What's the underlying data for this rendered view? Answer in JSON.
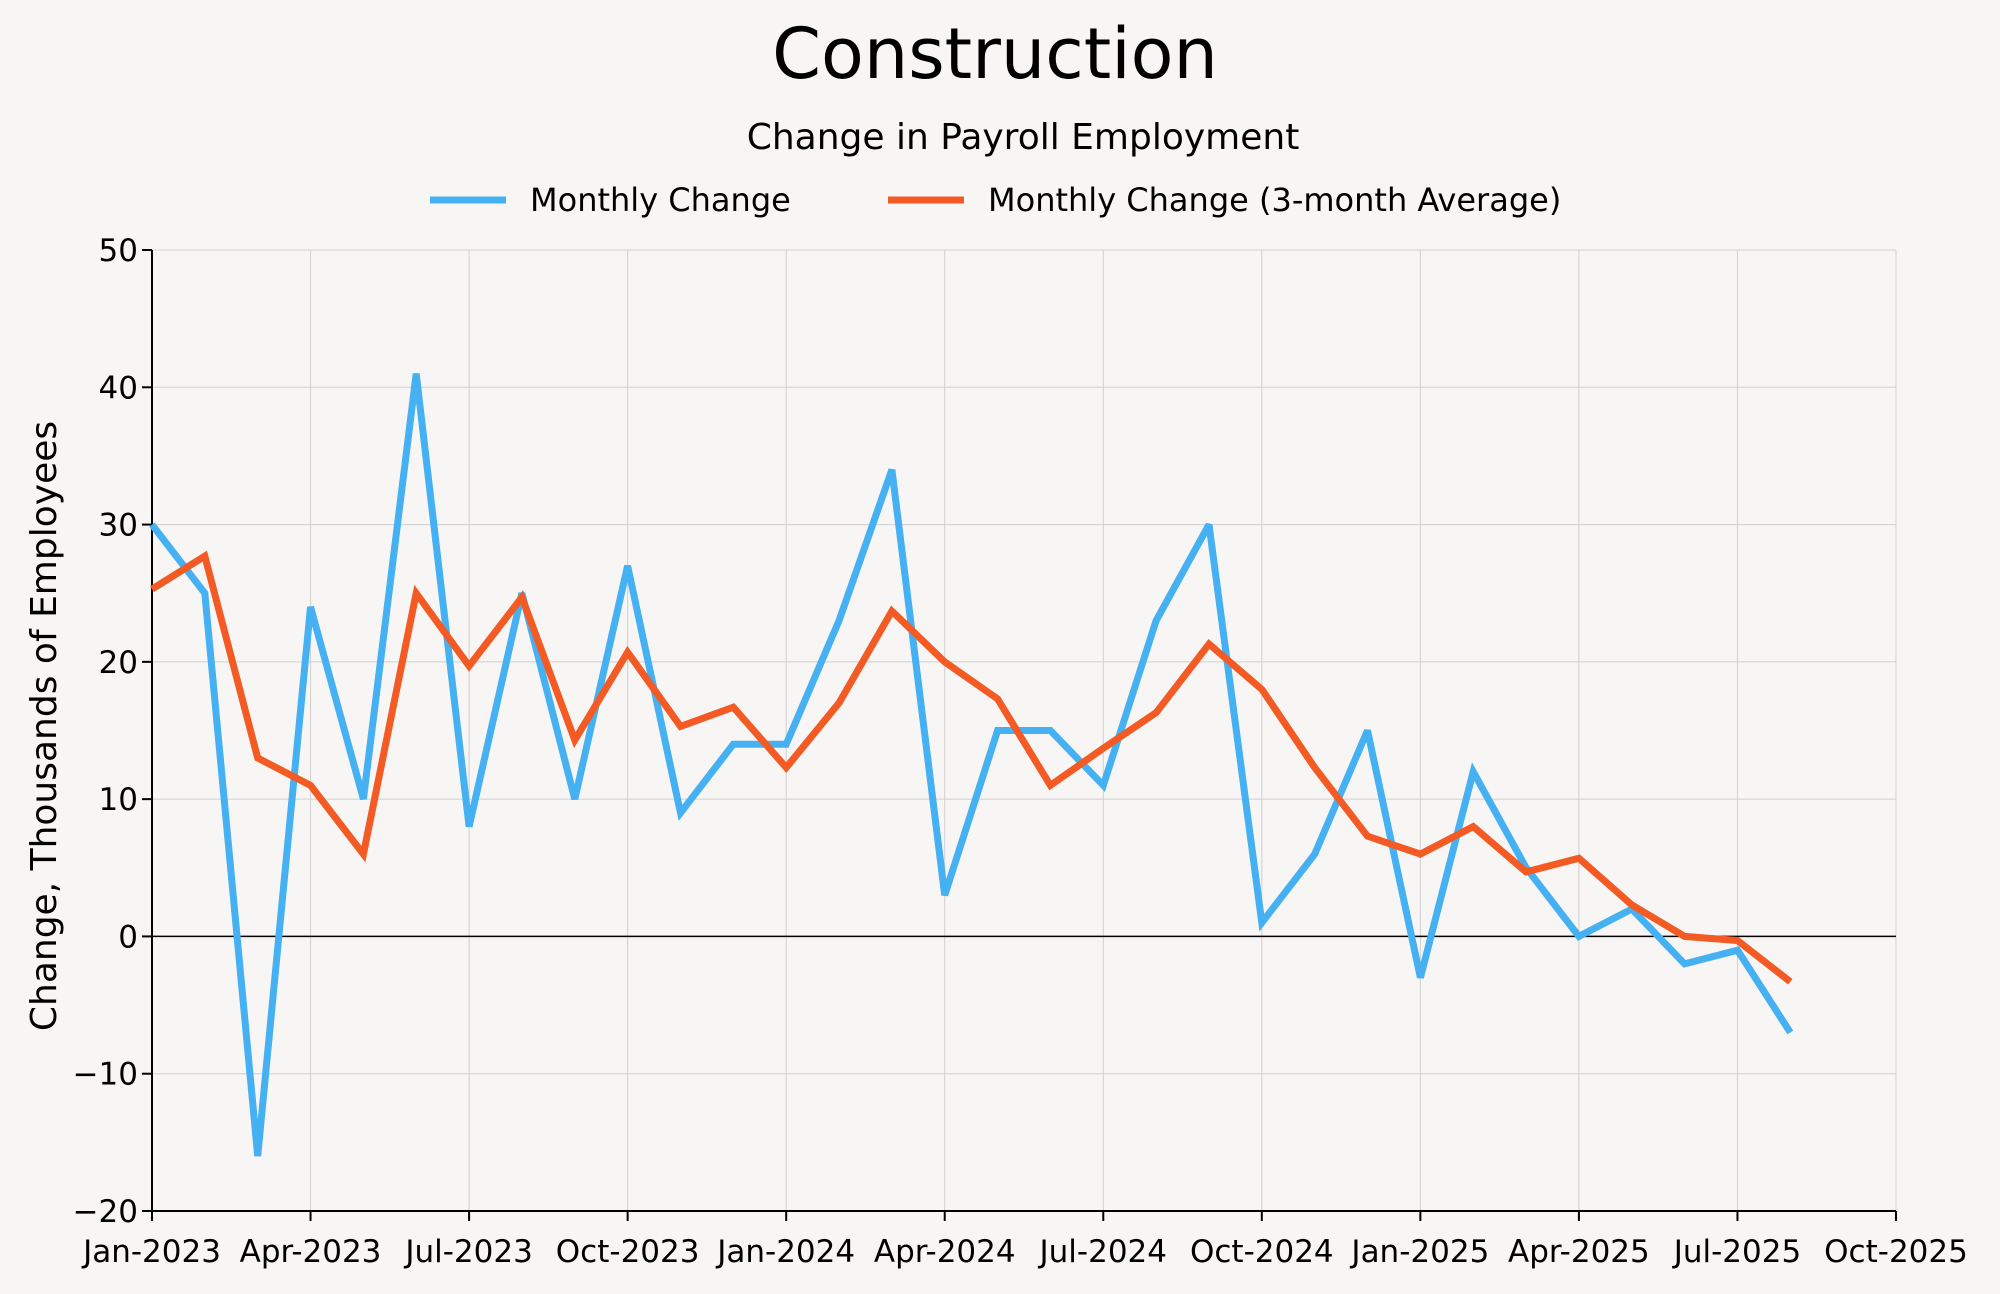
{
  "chart_data": {
    "type": "line",
    "title": "Construction",
    "subtitle": "Change in Payroll Employment",
    "ylabel": "Change, Thousands of Employees",
    "xlabel": "",
    "ylim": [
      -20,
      50
    ],
    "yticks": [
      -20,
      -10,
      0,
      10,
      20,
      30,
      40,
      50
    ],
    "xlim": [
      "2023-01",
      "2025-10"
    ],
    "xticks": [
      {
        "date": "2023-01",
        "label": "Jan-2023"
      },
      {
        "date": "2023-04",
        "label": "Apr-2023"
      },
      {
        "date": "2023-07",
        "label": "Jul-2023"
      },
      {
        "date": "2023-10",
        "label": "Oct-2023"
      },
      {
        "date": "2024-01",
        "label": "Jan-2024"
      },
      {
        "date": "2024-04",
        "label": "Apr-2024"
      },
      {
        "date": "2024-07",
        "label": "Jul-2024"
      },
      {
        "date": "2024-10",
        "label": "Oct-2024"
      },
      {
        "date": "2025-01",
        "label": "Jan-2025"
      },
      {
        "date": "2025-04",
        "label": "Apr-2025"
      },
      {
        "date": "2025-07",
        "label": "Jul-2025"
      },
      {
        "date": "2025-10",
        "label": "Oct-2025"
      }
    ],
    "grid": true,
    "legend_position": "top-center",
    "x": [
      "2023-01",
      "2023-02",
      "2023-03",
      "2023-04",
      "2023-05",
      "2023-06",
      "2023-07",
      "2023-08",
      "2023-09",
      "2023-10",
      "2023-11",
      "2023-12",
      "2024-01",
      "2024-02",
      "2024-03",
      "2024-04",
      "2024-05",
      "2024-06",
      "2024-07",
      "2024-08",
      "2024-09",
      "2024-10",
      "2024-11",
      "2024-12",
      "2025-01",
      "2025-02",
      "2025-03",
      "2025-04",
      "2025-05",
      "2025-06",
      "2025-07",
      "2025-08"
    ],
    "series": [
      {
        "name": "Monthly Change",
        "color": "#45b1f3",
        "values": [
          30,
          25,
          -16,
          24,
          10,
          41,
          8,
          25,
          10,
          27,
          9,
          14,
          14,
          23,
          34,
          3,
          15,
          15,
          11,
          23,
          30,
          1,
          6,
          15,
          -3,
          12,
          5,
          0,
          2,
          -2,
          -1,
          -7
        ]
      },
      {
        "name": "Monthly Change (3-month Average)",
        "color": "#f35a24",
        "values": [
          25.3,
          27.7,
          13,
          11,
          6,
          25,
          19.7,
          24.7,
          14.3,
          20.7,
          15.3,
          16.7,
          12.3,
          17,
          23.7,
          20,
          17.3,
          11,
          13.7,
          16.3,
          21.3,
          18,
          12.3,
          7.3,
          6,
          8,
          4.7,
          5.7,
          2.3,
          0,
          -0.3,
          -3.3
        ]
      }
    ]
  }
}
